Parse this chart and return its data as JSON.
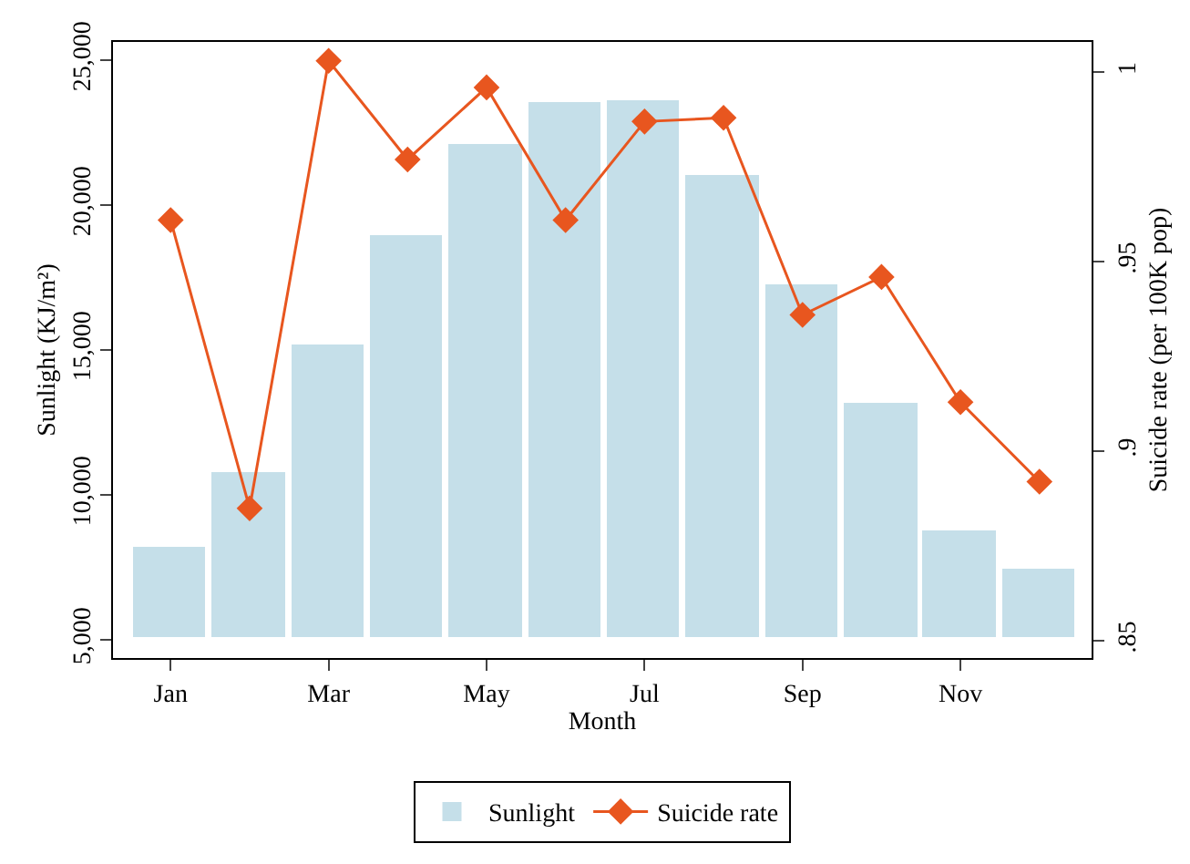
{
  "chart_data": {
    "type": "bar",
    "xlabel": "Month",
    "ylabel": "Sunlight (KJ/m²)",
    "y2label": "Suicide rate (per 100K pop)",
    "categories": [
      "Jan",
      null,
      "Mar",
      null,
      "May",
      null,
      "Jul",
      null,
      "Sep",
      null,
      "Nov",
      null
    ],
    "ylim": [
      4370,
      25630
    ],
    "yticks": [
      {
        "value": 5000,
        "label": "5,000"
      },
      {
        "value": 10000,
        "label": "10,000"
      },
      {
        "value": 15000,
        "label": "15,000"
      },
      {
        "value": 20000,
        "label": "20,000"
      },
      {
        "value": 25000,
        "label": "25,000"
      }
    ],
    "y2lim": [
      0.8455,
      1.008
    ],
    "y2ticks": [
      {
        "value": 0.85,
        "label": ".85"
      },
      {
        "value": 0.9,
        "label": ".9"
      },
      {
        "value": 0.95,
        "label": ".95"
      },
      {
        "value": 1,
        "label": "1"
      }
    ],
    "series": [
      {
        "name": "Sunlight",
        "color": "#c5dfe9",
        "base": [
          5000,
          5000,
          5000,
          5000,
          5000,
          5000,
          5000,
          5000,
          5000,
          5000,
          5000,
          5000
        ],
        "values": [
          3180,
          5810,
          10180,
          13940,
          17100,
          18530,
          18620,
          16050,
          12250,
          8170,
          3800,
          2470
        ]
      },
      {
        "name": "Suicide rate",
        "type": "line",
        "axis": "y2",
        "color": "#e8561f",
        "marker": "diamond",
        "values": [
          0.961,
          0.885,
          1.003,
          0.977,
          0.996,
          0.961,
          0.987,
          0.988,
          0.936,
          0.946,
          0.913,
          0.892
        ]
      }
    ],
    "legend": "bottom"
  }
}
